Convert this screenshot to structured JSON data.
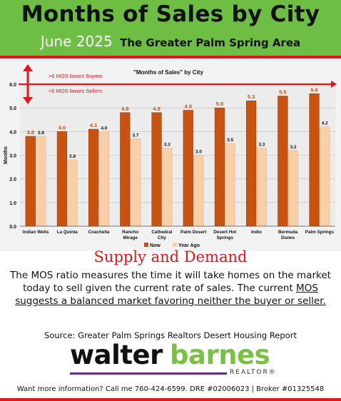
{
  "banner": {
    "title": "Months of Sales by City",
    "date": "June 2025",
    "area": "The Greater Palm Spring Area"
  },
  "chart_data": {
    "type": "bar",
    "title": "\"Months of Sales\" by City",
    "xlabel": "",
    "ylabel": "Months",
    "ylim": [
      0,
      6
    ],
    "yticks": [
      "0.0",
      "1.0",
      "2.0",
      "3.0",
      "4.0",
      "5.0",
      "6.0"
    ],
    "grid": true,
    "legend_position": "bottom",
    "categories": [
      "Indian Wells",
      "La Quinta",
      "Coachella",
      "Rancho Mirage",
      "Cathedral City",
      "Palm Desert",
      "Desert Hot Springs",
      "Indio",
      "Bermuda Dunes",
      "Palm Springs"
    ],
    "series": [
      {
        "name": "Now",
        "values": [
          3.8,
          4.0,
          4.1,
          4.8,
          4.8,
          4.9,
          5.0,
          5.3,
          5.5,
          5.6
        ],
        "labels": [
          "3.8",
          "4.0",
          "4.1",
          "4.8",
          "4.8",
          "4.9",
          "5.0",
          "5.3",
          "5.5",
          "5.6"
        ],
        "color": "#c8520f"
      },
      {
        "name": "Year Ago",
        "values": [
          3.8,
          2.8,
          4.0,
          3.7,
          3.3,
          3.0,
          3.5,
          3.3,
          3.2,
          4.2
        ],
        "labels": [
          "3.8",
          "2.8",
          "4.0",
          "3.7",
          "3.3",
          "3.0",
          "3.5",
          "3.3",
          "3.2",
          "4.2"
        ],
        "color": "#f8cfa6"
      }
    ],
    "annotations": {
      "threshold": 6.0,
      "buyers": ">6 MOS favors Buyers",
      "sellers": "<6 MOS favors Sellers"
    },
    "colors": {
      "threshold": "#e3161b"
    }
  },
  "supply": {
    "title": "Supply and Demand",
    "body_plain": "The MOS ratio measures the time it will take homes on the market today to sell given the current rate of sales.  The current ",
    "body_underlined": "MOS suggests a balanced market favoring neither the buyer or seller."
  },
  "source": "Source: Greater Palm Springs Realtors Desert Housing Report",
  "logo": {
    "walter": "walter",
    "barnes": "barnes",
    "realtor": "REALTOR®"
  },
  "footer": "Want more information? Call me 760-424-6599.  DRE #02006023 | Broker #01325548",
  "colors": {
    "banner": "#6fbe44",
    "accent": "#e3161b",
    "logo_green": "#7ac142",
    "logo_purple": "#6a2a8a"
  }
}
